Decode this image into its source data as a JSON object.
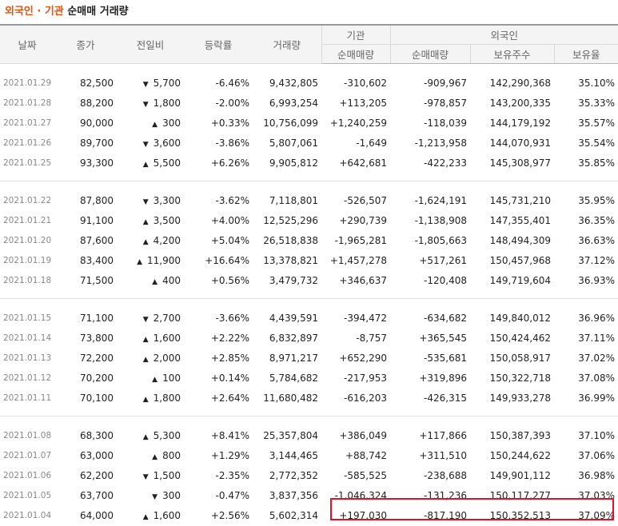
{
  "title": {
    "part1": "외국인 · 기관",
    "part2": "순매매 거래량"
  },
  "headers": {
    "date": "날짜",
    "close": "종가",
    "change": "전일비",
    "rate": "등락률",
    "volume": "거래량",
    "institution": "기관",
    "foreign": "외국인",
    "inst_net": "순매매량",
    "foreign_net": "순매매량",
    "foreign_holding": "보유주수",
    "foreign_ratio": "보유율"
  },
  "rows": [
    {
      "date": "2021.01.29",
      "close": "82,500",
      "dir": "down",
      "change": "5,700",
      "rate": "-6.46%",
      "volume": "9,432,805",
      "inst": "-310,602",
      "foreign": "-909,967",
      "holding": "142,290,368",
      "ratio": "35.10%"
    },
    {
      "date": "2021.01.28",
      "close": "88,200",
      "dir": "down",
      "change": "1,800",
      "rate": "-2.00%",
      "volume": "6,993,254",
      "inst": "+113,205",
      "foreign": "-978,857",
      "holding": "143,200,335",
      "ratio": "35.33%"
    },
    {
      "date": "2021.01.27",
      "close": "90,000",
      "dir": "up",
      "change": "300",
      "rate": "+0.33%",
      "volume": "10,756,099",
      "inst": "+1,240,259",
      "foreign": "-118,039",
      "holding": "144,179,192",
      "ratio": "35.57%"
    },
    {
      "date": "2021.01.26",
      "close": "89,700",
      "dir": "down",
      "change": "3,600",
      "rate": "-3.86%",
      "volume": "5,807,061",
      "inst": "-1,649",
      "foreign": "-1,213,958",
      "holding": "144,070,931",
      "ratio": "35.54%"
    },
    {
      "date": "2021.01.25",
      "close": "93,300",
      "dir": "up",
      "change": "5,500",
      "rate": "+6.26%",
      "volume": "9,905,812",
      "inst": "+642,681",
      "foreign": "-422,233",
      "holding": "145,308,977",
      "ratio": "35.85%"
    },
    {
      "date": "2021.01.22",
      "close": "87,800",
      "dir": "down",
      "change": "3,300",
      "rate": "-3.62%",
      "volume": "7,118,801",
      "inst": "-526,507",
      "foreign": "-1,624,191",
      "holding": "145,731,210",
      "ratio": "35.95%"
    },
    {
      "date": "2021.01.21",
      "close": "91,100",
      "dir": "up",
      "change": "3,500",
      "rate": "+4.00%",
      "volume": "12,525,296",
      "inst": "+290,739",
      "foreign": "-1,138,908",
      "holding": "147,355,401",
      "ratio": "36.35%"
    },
    {
      "date": "2021.01.20",
      "close": "87,600",
      "dir": "up",
      "change": "4,200",
      "rate": "+5.04%",
      "volume": "26,518,838",
      "inst": "-1,965,281",
      "foreign": "-1,805,663",
      "holding": "148,494,309",
      "ratio": "36.63%"
    },
    {
      "date": "2021.01.19",
      "close": "83,400",
      "dir": "up",
      "change": "11,900",
      "rate": "+16.64%",
      "volume": "13,378,821",
      "inst": "+1,457,278",
      "foreign": "+517,261",
      "holding": "150,457,968",
      "ratio": "37.12%"
    },
    {
      "date": "2021.01.18",
      "close": "71,500",
      "dir": "up",
      "change": "400",
      "rate": "+0.56%",
      "volume": "3,479,732",
      "inst": "+346,637",
      "foreign": "-120,408",
      "holding": "149,719,604",
      "ratio": "36.93%"
    },
    {
      "date": "2021.01.15",
      "close": "71,100",
      "dir": "down",
      "change": "2,700",
      "rate": "-3.66%",
      "volume": "4,439,591",
      "inst": "-394,472",
      "foreign": "-634,682",
      "holding": "149,840,012",
      "ratio": "36.96%"
    },
    {
      "date": "2021.01.14",
      "close": "73,800",
      "dir": "up",
      "change": "1,600",
      "rate": "+2.22%",
      "volume": "6,832,897",
      "inst": "-8,757",
      "foreign": "+365,545",
      "holding": "150,424,462",
      "ratio": "37.11%"
    },
    {
      "date": "2021.01.13",
      "close": "72,200",
      "dir": "up",
      "change": "2,000",
      "rate": "+2.85%",
      "volume": "8,971,217",
      "inst": "+652,290",
      "foreign": "-535,681",
      "holding": "150,058,917",
      "ratio": "37.02%"
    },
    {
      "date": "2021.01.12",
      "close": "70,200",
      "dir": "up",
      "change": "100",
      "rate": "+0.14%",
      "volume": "5,784,682",
      "inst": "-217,953",
      "foreign": "+319,896",
      "holding": "150,322,718",
      "ratio": "37.08%"
    },
    {
      "date": "2021.01.11",
      "close": "70,100",
      "dir": "up",
      "change": "1,800",
      "rate": "+2.64%",
      "volume": "11,680,482",
      "inst": "-616,203",
      "foreign": "-426,315",
      "holding": "149,933,278",
      "ratio": "36.99%"
    },
    {
      "date": "2021.01.08",
      "close": "68,300",
      "dir": "up",
      "change": "5,300",
      "rate": "+8.41%",
      "volume": "25,357,804",
      "inst": "+386,049",
      "foreign": "+117,866",
      "holding": "150,387,393",
      "ratio": "37.10%"
    },
    {
      "date": "2021.01.07",
      "close": "63,000",
      "dir": "up",
      "change": "800",
      "rate": "+1.29%",
      "volume": "3,144,465",
      "inst": "+88,742",
      "foreign": "+311,510",
      "holding": "150,244,622",
      "ratio": "37.06%"
    },
    {
      "date": "2021.01.06",
      "close": "62,200",
      "dir": "down",
      "change": "1,500",
      "rate": "-2.35%",
      "volume": "2,772,352",
      "inst": "-585,525",
      "foreign": "-238,688",
      "holding": "149,901,112",
      "ratio": "36.98%"
    },
    {
      "date": "2021.01.05",
      "close": "63,700",
      "dir": "down",
      "change": "300",
      "rate": "-0.47%",
      "volume": "3,837,356",
      "inst": "-1,046,324",
      "foreign": "-131,236",
      "holding": "150,117,277",
      "ratio": "37.03%"
    },
    {
      "date": "2021.01.04",
      "close": "64,000",
      "dir": "up",
      "change": "1,600",
      "rate": "+2.56%",
      "volume": "5,602,314",
      "inst": "+197,030",
      "foreign": "-817,190",
      "holding": "150,352,513",
      "ratio": "37.09%"
    }
  ],
  "icons": {
    "up": "triangle-up-icon",
    "down": "triangle-down-icon"
  },
  "colors": {
    "up": "#e01e1e",
    "down": "#1d5fd6",
    "title_accent": "#e8540e",
    "highlight": "#e3102a"
  }
}
